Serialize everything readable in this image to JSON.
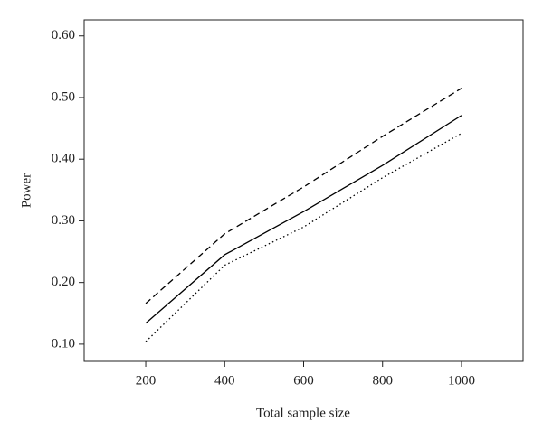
{
  "chart_data": {
    "type": "line",
    "x_label": "Total sample size",
    "y_label": "Power",
    "x": [
      200,
      400,
      600,
      800,
      1000
    ],
    "series": [
      {
        "color": "#000000",
        "dash": "dashed",
        "values": [
          0.166,
          0.279,
          0.355,
          0.437,
          0.515
        ]
      },
      {
        "color": "#000000",
        "dash": "solid",
        "values": [
          0.134,
          0.245,
          0.315,
          0.39,
          0.471
        ]
      },
      {
        "color": "#000000",
        "dash": "dotted",
        "values": [
          0.104,
          0.228,
          0.29,
          0.37,
          0.442
        ]
      }
    ],
    "xlim": [
      44,
      1156
    ],
    "xticks": [
      200,
      400,
      600,
      800,
      1000
    ],
    "ylim": [
      0.072,
      0.626
    ],
    "yticks": [
      {
        "value": 0.1,
        "label": "0.10"
      },
      {
        "value": 0.2,
        "label": "0.20"
      },
      {
        "value": 0.3,
        "label": "0.30"
      },
      {
        "value": 0.4,
        "label": "0.40"
      },
      {
        "value": 0.5,
        "label": "0.50"
      },
      {
        "value": 0.6,
        "label": "0.60"
      }
    ]
  }
}
